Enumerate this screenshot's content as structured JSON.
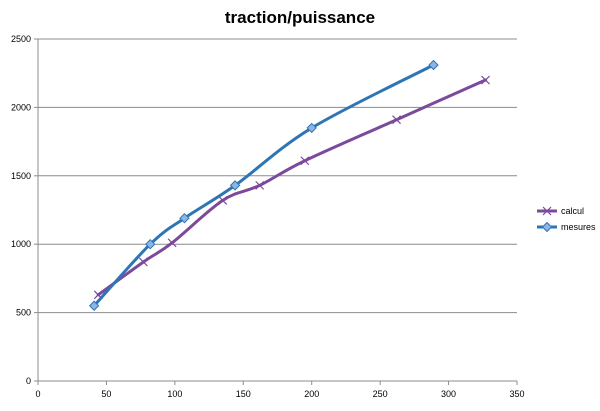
{
  "chart_data": {
    "type": "line",
    "title": "traction/puissance",
    "xlabel": "",
    "ylabel": "",
    "xlim": [
      0,
      350
    ],
    "ylim": [
      0,
      2500
    ],
    "xticks": [
      0,
      50,
      100,
      150,
      200,
      250,
      300,
      350
    ],
    "yticks": [
      0,
      500,
      1000,
      1500,
      2000,
      2500
    ],
    "grid": "horizontal",
    "legend_position": "right",
    "series": [
      {
        "name": "calcul",
        "color": "#7b4a9b",
        "marker": "x",
        "x": [
          44,
          77,
          98,
          135,
          162,
          195,
          262,
          327
        ],
        "y": [
          630,
          870,
          1010,
          1320,
          1430,
          1610,
          1910,
          2200
        ]
      },
      {
        "name": "mesures",
        "color": "#2e75b6",
        "marker": "diamond",
        "x": [
          41,
          82,
          107,
          144,
          200,
          289
        ],
        "y": [
          550,
          1000,
          1190,
          1430,
          1850,
          2310
        ]
      }
    ]
  }
}
